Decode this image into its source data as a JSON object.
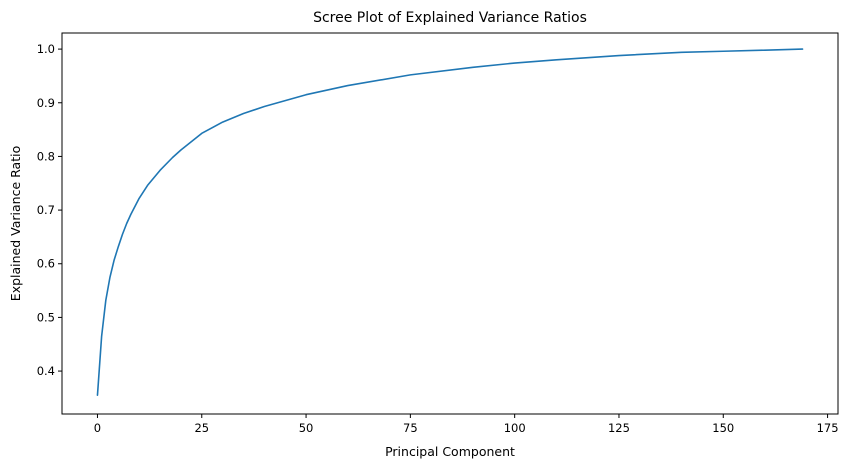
{
  "chart_data": {
    "type": "line",
    "title": "Scree Plot of Explained Variance Ratios",
    "xlabel": "Principal Component",
    "ylabel": "Explained Variance Ratio",
    "xlim": [
      -8.5,
      177.5
    ],
    "ylim": [
      0.32,
      1.03
    ],
    "xticks": [
      0,
      25,
      50,
      75,
      100,
      125,
      150,
      175
    ],
    "yticks": [
      0.4,
      0.5,
      0.6,
      0.7,
      0.8,
      0.9,
      1.0
    ],
    "xtick_labels": [
      "0",
      "25",
      "50",
      "75",
      "100",
      "125",
      "150",
      "175"
    ],
    "ytick_labels": [
      "0.4",
      "0.5",
      "0.6",
      "0.7",
      "0.8",
      "0.9",
      "1.0"
    ],
    "grid": false,
    "line_color": "#1f77b4",
    "x": [
      0,
      1,
      2,
      3,
      4,
      5,
      6,
      7,
      8,
      10,
      12,
      15,
      18,
      20,
      25,
      30,
      35,
      40,
      50,
      60,
      75,
      90,
      100,
      110,
      125,
      140,
      150,
      160,
      169
    ],
    "y": [
      0.355,
      0.465,
      0.532,
      0.575,
      0.607,
      0.632,
      0.655,
      0.675,
      0.692,
      0.722,
      0.746,
      0.774,
      0.798,
      0.812,
      0.843,
      0.864,
      0.88,
      0.893,
      0.915,
      0.932,
      0.952,
      0.966,
      0.974,
      0.98,
      0.988,
      0.994,
      0.996,
      0.998,
      1.0
    ]
  }
}
